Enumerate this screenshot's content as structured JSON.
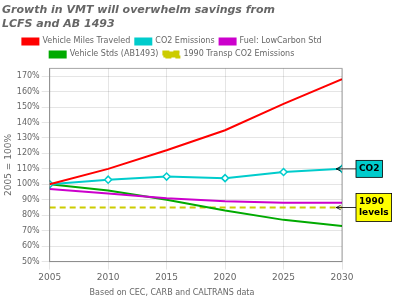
{
  "chart_data": {
    "type": "line",
    "title": "Growth in VMT will overwhelm savings from\nLCFS and AB 1493",
    "subtitle": "Based on CEC, CARB and CALTRANS data",
    "y_label": "2005 = 100%",
    "xlim": [
      2005,
      2030
    ],
    "xticks": [
      2005,
      2010,
      2015,
      2020,
      2025,
      2030
    ],
    "ylim": [
      50,
      175
    ],
    "yticks": [
      {
        "value": 50,
        "label": "50%"
      },
      {
        "value": 60,
        "label": "60%"
      },
      {
        "value": 70,
        "label": "70%"
      },
      {
        "value": 80,
        "label": "80%"
      },
      {
        "value": 90,
        "label": "90%"
      },
      {
        "value": 100,
        "label": "100%"
      },
      {
        "value": 110,
        "label": "110%"
      },
      {
        "value": 120,
        "label": "120%"
      },
      {
        "value": 130,
        "label": "130%"
      },
      {
        "value": 140,
        "label": "140%"
      },
      {
        "value": 150,
        "label": "150%"
      },
      {
        "value": 160,
        "label": "160%"
      },
      {
        "value": 170,
        "label": "170%"
      }
    ],
    "grid": true,
    "legend": "top",
    "series": [
      {
        "name": "Vehicle Miles Traveled",
        "color": "#ff0000",
        "line_style": "solid",
        "x": [
          2005,
          2010,
          2015,
          2020,
          2025,
          2030
        ],
        "values": [
          100,
          110,
          122,
          135,
          152,
          168
        ]
      },
      {
        "name": "CO2 Emissions",
        "color": "#00cccc",
        "line_style": "solid",
        "marker": "diamond",
        "x": [
          2005,
          2010,
          2015,
          2020,
          2025,
          2030
        ],
        "values": [
          100,
          103,
          105,
          104,
          108,
          110
        ]
      },
      {
        "name": "Fuel: LowCarbon Std",
        "color": "#cc00cc",
        "line_style": "solid",
        "x": [
          2005,
          2010,
          2015,
          2020,
          2025,
          2030
        ],
        "values": [
          97,
          94,
          91,
          89,
          88,
          88
        ]
      },
      {
        "name": "Vehicle Stds (AB1493)",
        "color": "#00aa00",
        "line_style": "solid",
        "x": [
          2005,
          2010,
          2015,
          2020,
          2025,
          2030
        ],
        "values": [
          100,
          96,
          90,
          83,
          77,
          73
        ]
      },
      {
        "name": "1990 Transp CO2 Emissions",
        "color": "#cccc00",
        "line_style": "dashed",
        "x": [
          2005,
          2030
        ],
        "values": [
          85,
          85
        ]
      }
    ],
    "annotations": [
      {
        "text": "CO2",
        "x": 2029.5,
        "y": 110,
        "color": "#00cccc"
      },
      {
        "text": "1990\nlevels",
        "x": 2029.5,
        "y": 85,
        "color": "#ffff00"
      }
    ]
  }
}
